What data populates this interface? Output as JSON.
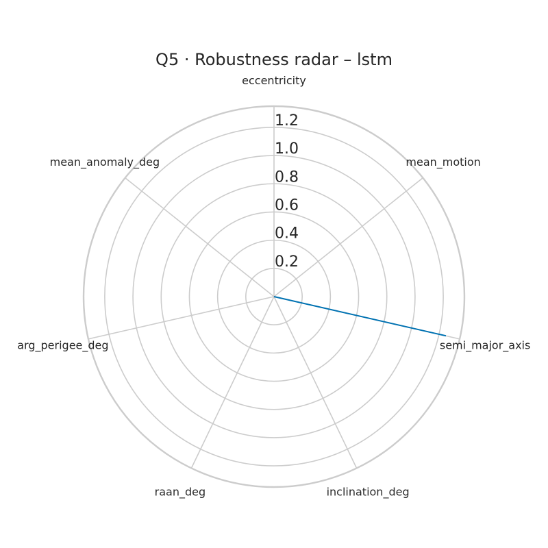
{
  "chart_data": {
    "type": "radar",
    "title": "Q5 · Robustness radar – lstm",
    "axes": [
      "eccentricity",
      "mean_motion",
      "semi_major_axis",
      "inclination_deg",
      "raan_deg",
      "arg_perigee_deg",
      "mean_anomaly_deg"
    ],
    "r_ticks": [
      0.2,
      0.4,
      0.6,
      0.8,
      1.0,
      1.2
    ],
    "r_tick_labels": [
      "0.2",
      "0.4",
      "0.6",
      "0.8",
      "1.0",
      "1.2"
    ],
    "rlim": [
      0,
      1.35
    ],
    "grid": true,
    "series": [
      {
        "color": "#0072b2",
        "values": [
          0,
          0,
          1.25,
          0,
          0,
          0,
          0
        ]
      }
    ]
  }
}
